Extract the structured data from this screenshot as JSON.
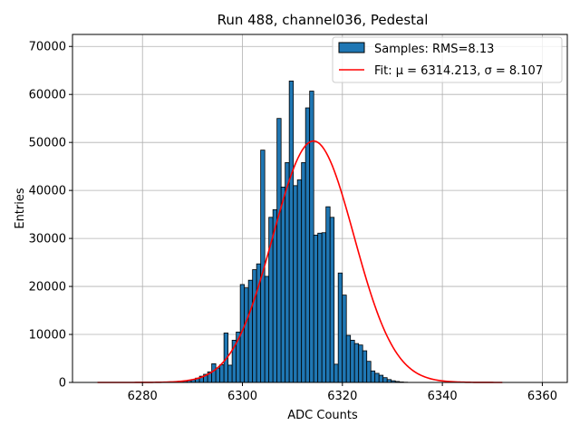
{
  "chart_data": {
    "type": "bar",
    "title": "Run 488, channel036, Pedestal",
    "xlabel": "ADC Counts",
    "ylabel": "Entries",
    "xlim": [
      6266,
      6365
    ],
    "ylim": [
      0,
      72500
    ],
    "xticks": [
      6280,
      6300,
      6320,
      6340,
      6360
    ],
    "yticks": [
      0,
      10000,
      20000,
      30000,
      40000,
      50000,
      60000,
      70000
    ],
    "grid": true,
    "legend_position": "top-right",
    "histogram": {
      "name": "Samples: RMS=8.13",
      "color": "#1f77b4",
      "edgecolor": "#000000",
      "bin_start": 6271,
      "bin_width": 0.8163,
      "values": [
        0,
        0,
        0,
        0,
        0,
        0,
        0,
        0,
        0,
        0,
        0,
        0,
        0,
        0,
        0,
        0,
        0,
        0,
        0,
        0,
        100,
        250,
        400,
        600,
        900,
        1300,
        1700,
        2200,
        3900,
        3000,
        3700,
        10300,
        3600,
        8800,
        10500,
        20400,
        19700,
        21300,
        23500,
        24700,
        48400,
        22100,
        34400,
        36000,
        55000,
        40700,
        45800,
        62800,
        41000,
        42200,
        45800,
        57200,
        60700,
        30700,
        31100,
        31200,
        36600,
        34400,
        3800,
        22800,
        18200,
        9800,
        8800,
        8100,
        7800,
        6600,
        4400,
        2400,
        1900,
        1500,
        1000,
        600,
        350,
        200,
        100,
        50,
        0,
        0,
        0,
        0,
        0,
        0,
        0,
        0,
        0,
        0,
        0,
        0,
        0,
        0,
        0,
        0,
        0,
        0,
        0,
        0,
        0,
        0,
        0
      ]
    },
    "fit": {
      "name": "Fit: μ = 6314.213, σ = 8.107",
      "color": "#ff0000",
      "mu": 6314.213,
      "sigma": 8.107,
      "amplitude": 50300,
      "x_range": [
        6271,
        6352
      ]
    }
  }
}
